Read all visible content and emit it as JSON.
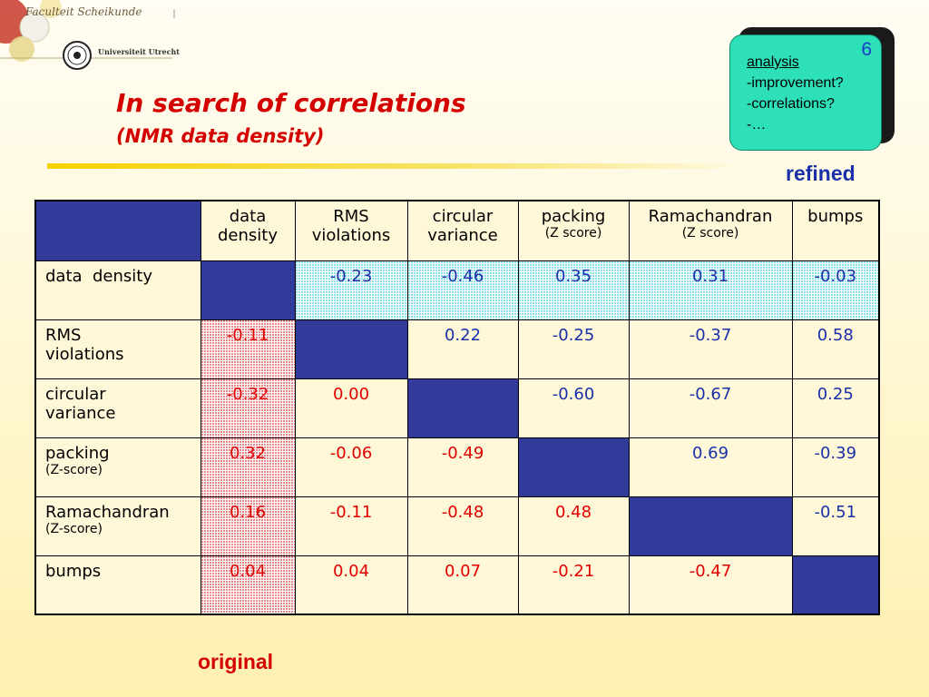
{
  "header": {
    "faculty": "Faculteit Scheikunde",
    "university": "Universiteit Utrecht"
  },
  "slide": {
    "title": "In search of correlations",
    "subtitle": "(NMR data density)",
    "number": "6"
  },
  "callout": {
    "heading": "analysis",
    "lines": [
      "-improvement?",
      "-correlations?",
      "-…"
    ]
  },
  "labels": {
    "refined": "refined",
    "original": "original"
  },
  "table": {
    "columns": [
      {
        "line1": "data",
        "line2": "density"
      },
      {
        "line1": "RMS",
        "line2": "violations"
      },
      {
        "line1": "circular",
        "line2": "variance"
      },
      {
        "line1": "packing",
        "line2": "(Z score)"
      },
      {
        "line1": "Ramachandran",
        "line2": "(Z score)"
      },
      {
        "line1": "bumps",
        "line2": ""
      }
    ],
    "rows": [
      {
        "line1": "data  density",
        "line2": "",
        "values": [
          "",
          "-0.23",
          "-0.46",
          "0.35",
          "0.31",
          "-0.03"
        ]
      },
      {
        "line1": "RMS",
        "line2": "violations",
        "values": [
          "-0.11",
          "",
          "0.22",
          "-0.25",
          "-0.37",
          "0.58"
        ]
      },
      {
        "line1": "circular",
        "line2": "variance",
        "values": [
          "-0.32",
          "0.00",
          "",
          "-0.60",
          "-0.67",
          "0.25"
        ]
      },
      {
        "line1": "packing",
        "line2": "(Z-score)",
        "values": [
          "0.32",
          "-0.06",
          "-0.49",
          "",
          "0.69",
          "-0.39"
        ]
      },
      {
        "line1": "Ramachandran",
        "line2": "(Z-score)",
        "values": [
          "0.16",
          "-0.11",
          "-0.48",
          "0.48",
          "",
          "-0.51"
        ]
      },
      {
        "line1": "bumps",
        "line2": "",
        "values": [
          "0.04",
          "0.04",
          "0.07",
          "-0.21",
          "-0.47",
          ""
        ]
      }
    ]
  },
  "colors": {
    "title": "#d40000",
    "refined_values": "#1a2fa8",
    "original_values": "#e00000",
    "diagonal": "#323b9a",
    "callout": "#2ee0b8"
  }
}
